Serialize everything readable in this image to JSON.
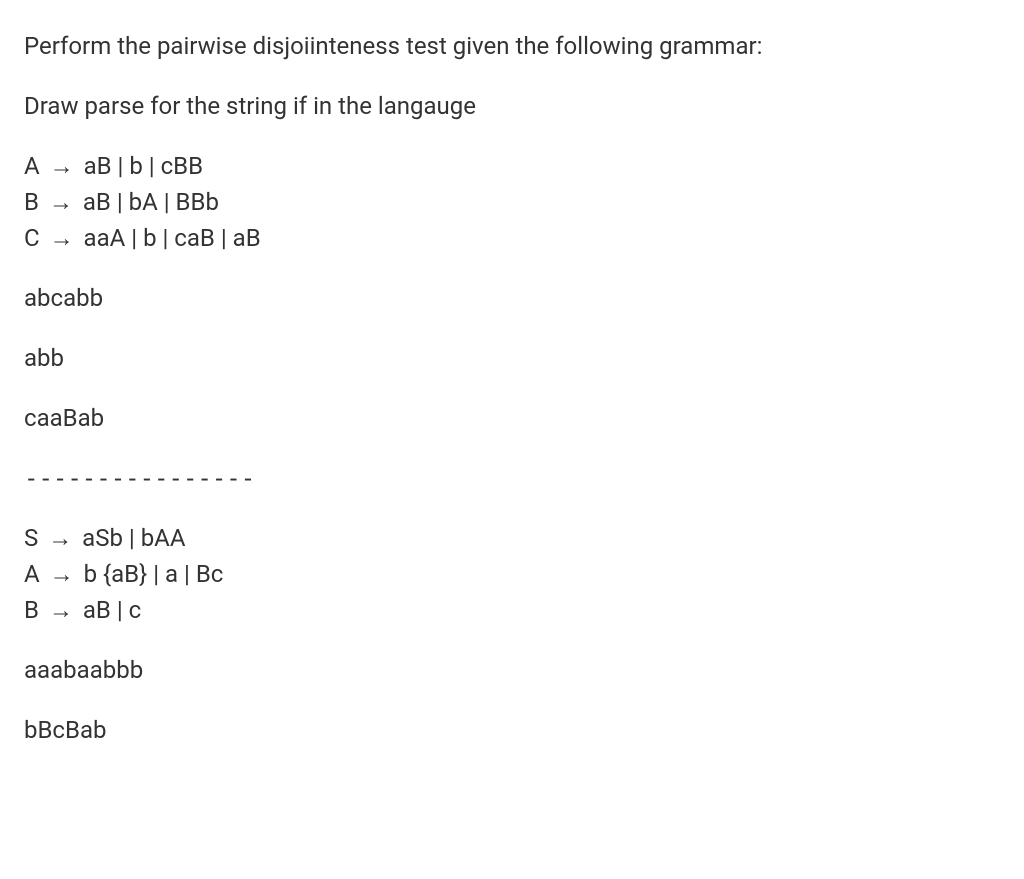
{
  "intro": {
    "line1": "Perform the pairwise disjoiinteness test given the following grammar:",
    "line2": "Draw parse for the string if in the langauge"
  },
  "grammar1": {
    "line1_lhs": "A",
    "line1_arrow": "→",
    "line1_rhs": "aB | b | cBB",
    "line2_lhs": "B",
    "line2_arrow": "→",
    "line2_rhs": "aB | bA | BBb",
    "line3_lhs": "C",
    "line3_arrow": "→",
    "line3_rhs": "aaA | b | caB | aB"
  },
  "strings1": {
    "s1": "abcabb",
    "s2": "abb",
    "s3": "caaBab"
  },
  "divider": "----------------",
  "grammar2": {
    "line1_lhs": "S",
    "line1_arrow": "→",
    "line1_rhs": "aSb | bAA",
    "line2_lhs": "A",
    "line2_arrow": "→",
    "line2_rhs": "b {aB} | a | Bc",
    "line3_lhs": "B",
    "line3_arrow": "→",
    "line3_rhs": "aB | c"
  },
  "strings2": {
    "s1": "aaabaabbb",
    "s2": "bBcBab"
  },
  "style": {
    "font_size": 24,
    "text_color": "#333333",
    "background_color": "#ffffff",
    "line_height": 1.5,
    "para_spacing": 24
  }
}
